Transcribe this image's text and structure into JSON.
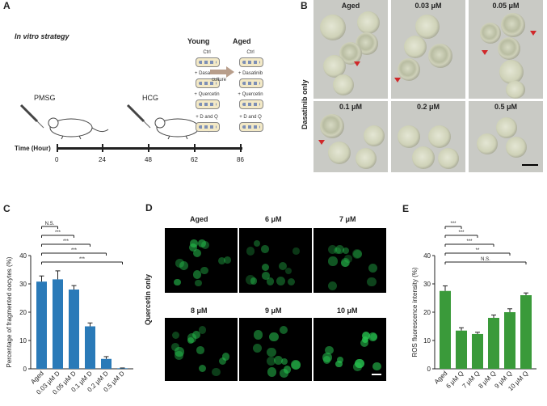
{
  "panels": {
    "A": {
      "label": "A",
      "strategy": "In vitro strategy",
      "pmsg": "PMSG",
      "hcg": "HCG",
      "young": "Young",
      "aged": "Aged",
      "culture": "culture",
      "treatments": [
        "Ctrl",
        "+ Dasatinib",
        "+ Quercetin",
        "+ D and Q"
      ],
      "time_label": "Time (Hour)",
      "time_ticks": [
        "0",
        "24",
        "48",
        "62",
        "86"
      ]
    },
    "B": {
      "label": "B",
      "side_label": "Dasatinib only",
      "cells": [
        "Aged",
        "0.03 μM",
        "0.05 μM",
        "0.1 μM",
        "0.2 μM",
        "0.5 μM"
      ]
    },
    "D": {
      "label": "D",
      "side_label": "Quercetin only",
      "cells": [
        "Aged",
        "6 μM",
        "7 μM",
        "8 μM",
        "9 μM",
        "10 μM"
      ],
      "colors": {
        "fluor": "#27c450",
        "bg": "#000000"
      }
    }
  },
  "chart_data": [
    {
      "panel": "C",
      "type": "bar",
      "categories": [
        "Aged",
        "0.03 μM D",
        "0.05 μM D",
        "0.1 μM D",
        "0.2 μM D",
        "0.5 μM D"
      ],
      "values": [
        30.8,
        31.6,
        28.0,
        15.0,
        3.5,
        0.2
      ],
      "errors": [
        2.0,
        3.0,
        1.4,
        1.2,
        0.8,
        0.1
      ],
      "ylabel": "Percentage of fragmented oocytes (%)",
      "ylim": [
        0,
        40
      ],
      "yticks": [
        "0",
        "10",
        "20",
        "30",
        "40"
      ],
      "color": "#2a7ab8",
      "significance": [
        "N.S.",
        "***",
        "***",
        "***",
        "***"
      ]
    },
    {
      "panel": "E",
      "type": "bar",
      "categories": [
        "Aged",
        "6 μM Q",
        "7 μM Q",
        "8 μM Q",
        "9 μM Q",
        "10 μM Q"
      ],
      "values": [
        27.5,
        13.5,
        12.3,
        18.0,
        20.0,
        26.0
      ],
      "errors": [
        1.8,
        1.0,
        0.6,
        1.0,
        1.2,
        0.8
      ],
      "ylabel": "ROS fluorescence intensity (%)",
      "ylim": [
        0,
        40
      ],
      "yticks": [
        "0",
        "10",
        "20",
        "30",
        "40"
      ],
      "color": "#3a9a3a",
      "significance": [
        "***",
        "***",
        "***",
        "**",
        "N.S."
      ]
    }
  ]
}
